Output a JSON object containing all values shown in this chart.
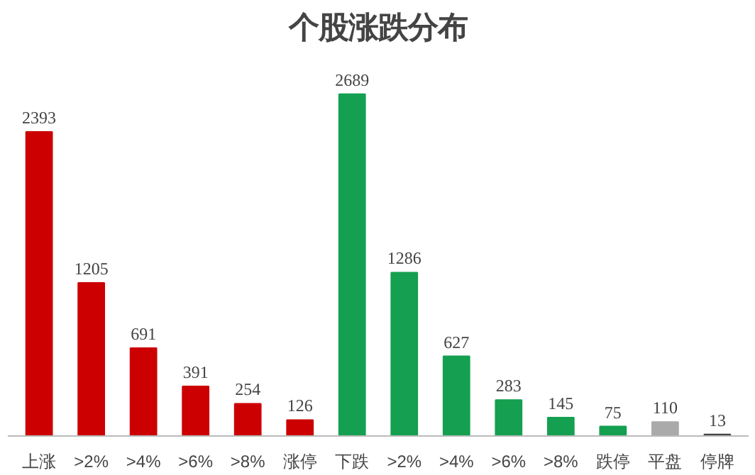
{
  "chart_data": {
    "type": "bar",
    "title": "个股涨跌分布",
    "categories": [
      "上涨",
      ">2%",
      ">4%",
      ">6%",
      ">8%",
      "涨停",
      "下跌",
      ">2%",
      ">4%",
      ">6%",
      ">8%",
      "跌停",
      "平盘",
      "停牌"
    ],
    "values": [
      2393,
      1205,
      691,
      391,
      254,
      126,
      2689,
      1286,
      627,
      283,
      145,
      75,
      110,
      13
    ],
    "colors": [
      "#cc0000",
      "#cc0000",
      "#cc0000",
      "#cc0000",
      "#cc0000",
      "#cc0000",
      "#14a050",
      "#14a050",
      "#14a050",
      "#14a050",
      "#14a050",
      "#14a050",
      "#aaaaaa",
      "#444444"
    ],
    "data_labels": true,
    "grid": false,
    "tick_labels": "x"
  }
}
